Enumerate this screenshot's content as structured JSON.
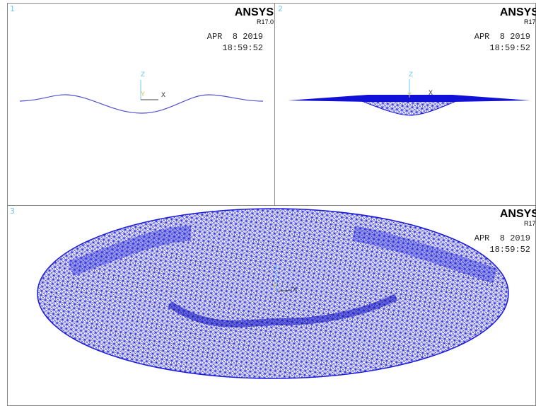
{
  "viewports": [
    {
      "number": "1",
      "logo": "ANSYS",
      "version": "R17.0",
      "date": "APR  8 2019",
      "time": "18:59:52",
      "axes": {
        "z": "Z",
        "y": "Y",
        "x": "X"
      }
    },
    {
      "number": "2",
      "logo": "ANSYS",
      "version": "R17.",
      "date": "APR  8 2019",
      "time": "18:59:52",
      "axes": {
        "z": "Z",
        "y": "Y",
        "x": "X"
      }
    },
    {
      "number": "3",
      "logo": "ANSYS",
      "version": "R17.",
      "date": "APR  8 2019",
      "time": "18:59:52",
      "axes": {
        "z": "Z",
        "y": "Y",
        "x": "X"
      }
    }
  ]
}
